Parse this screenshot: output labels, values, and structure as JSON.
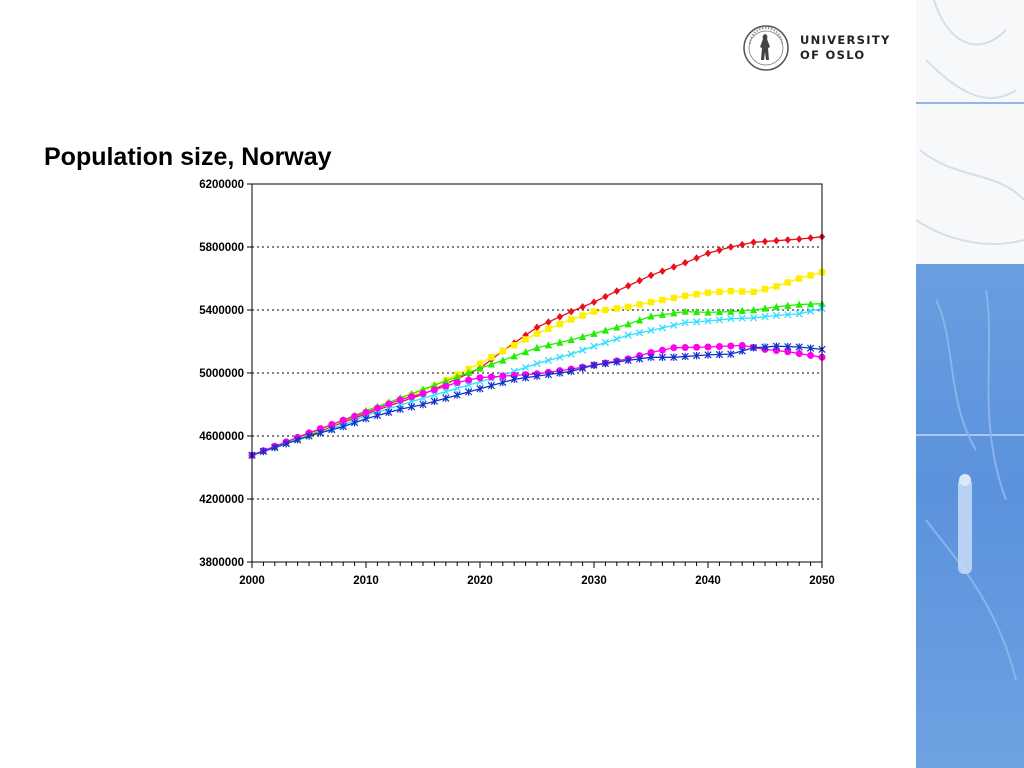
{
  "logo": {
    "line1": "UNIVERSITY",
    "line2": "OF OSLO"
  },
  "page_title": "Population size, Norway",
  "colors": {
    "side_panel": "#5b92dc",
    "divider": "#8fb7ee"
  },
  "chart_data": {
    "type": "line",
    "title": "",
    "xlabel": "",
    "ylabel": "",
    "xlim": [
      2000,
      2050
    ],
    "ylim": [
      3800000,
      6200000
    ],
    "x_ticks": [
      "2000",
      "2010",
      "2020",
      "2030",
      "2040",
      "2050"
    ],
    "y_ticks": [
      "6200000",
      "5800000",
      "5400000",
      "5000000",
      "4600000",
      "4200000",
      "3800000"
    ],
    "grid": "horizontal dotted",
    "legend": "none",
    "series": [
      {
        "color": "#e8101a",
        "marker": "diamond",
        "points": [
          [
            2000,
            4478000
          ],
          [
            2005,
            4606000
          ],
          [
            2010,
            4740000
          ],
          [
            2015,
            4865000
          ],
          [
            2020,
            5030000
          ],
          [
            2022,
            5140000
          ],
          [
            2025,
            5290000
          ],
          [
            2028,
            5390000
          ],
          [
            2030,
            5450000
          ],
          [
            2032,
            5520000
          ],
          [
            2035,
            5620000
          ],
          [
            2038,
            5700000
          ],
          [
            2040,
            5760000
          ],
          [
            2042,
            5800000
          ],
          [
            2044,
            5830000
          ],
          [
            2046,
            5840000
          ],
          [
            2048,
            5850000
          ],
          [
            2050,
            5865000
          ]
        ]
      },
      {
        "color": "#ffee00",
        "marker": "square",
        "points": [
          [
            2000,
            4478000
          ],
          [
            2005,
            4610000
          ],
          [
            2010,
            4750000
          ],
          [
            2015,
            4885000
          ],
          [
            2020,
            5060000
          ],
          [
            2022,
            5140000
          ],
          [
            2025,
            5250000
          ],
          [
            2028,
            5340000
          ],
          [
            2030,
            5390000
          ],
          [
            2033,
            5420000
          ],
          [
            2035,
            5450000
          ],
          [
            2038,
            5490000
          ],
          [
            2040,
            5510000
          ],
          [
            2042,
            5520000
          ],
          [
            2044,
            5515000
          ],
          [
            2046,
            5550000
          ],
          [
            2048,
            5600000
          ],
          [
            2050,
            5640000
          ]
        ]
      },
      {
        "color": "#22ee00",
        "marker": "triangle",
        "points": [
          [
            2000,
            4478000
          ],
          [
            2005,
            4615000
          ],
          [
            2010,
            4760000
          ],
          [
            2015,
            4895000
          ],
          [
            2020,
            5030000
          ],
          [
            2022,
            5080000
          ],
          [
            2025,
            5160000
          ],
          [
            2028,
            5210000
          ],
          [
            2030,
            5250000
          ],
          [
            2033,
            5310000
          ],
          [
            2035,
            5360000
          ],
          [
            2038,
            5390000
          ],
          [
            2040,
            5385000
          ],
          [
            2042,
            5390000
          ],
          [
            2044,
            5400000
          ],
          [
            2046,
            5420000
          ],
          [
            2048,
            5435000
          ],
          [
            2050,
            5440000
          ]
        ]
      },
      {
        "color": "#33ddff",
        "marker": "x",
        "points": [
          [
            2000,
            4478000
          ],
          [
            2005,
            4600000
          ],
          [
            2008,
            4670000
          ],
          [
            2010,
            4730000
          ],
          [
            2015,
            4840000
          ],
          [
            2020,
            4945000
          ],
          [
            2022,
            4985000
          ],
          [
            2025,
            5060000
          ],
          [
            2028,
            5120000
          ],
          [
            2030,
            5170000
          ],
          [
            2033,
            5240000
          ],
          [
            2035,
            5270000
          ],
          [
            2038,
            5320000
          ],
          [
            2040,
            5330000
          ],
          [
            2042,
            5345000
          ],
          [
            2044,
            5350000
          ],
          [
            2046,
            5365000
          ],
          [
            2048,
            5375000
          ],
          [
            2050,
            5410000
          ]
        ]
      },
      {
        "color": "#ff00ee",
        "marker": "circle",
        "points": [
          [
            2000,
            4478000
          ],
          [
            2005,
            4620000
          ],
          [
            2008,
            4700000
          ],
          [
            2010,
            4750000
          ],
          [
            2013,
            4830000
          ],
          [
            2015,
            4870000
          ],
          [
            2018,
            4940000
          ],
          [
            2020,
            4970000
          ],
          [
            2023,
            4985000
          ],
          [
            2025,
            4995000
          ],
          [
            2028,
            5025000
          ],
          [
            2030,
            5050000
          ],
          [
            2033,
            5090000
          ],
          [
            2035,
            5130000
          ],
          [
            2037,
            5160000
          ],
          [
            2040,
            5165000
          ],
          [
            2043,
            5175000
          ],
          [
            2045,
            5150000
          ],
          [
            2047,
            5135000
          ],
          [
            2050,
            5100000
          ]
        ]
      },
      {
        "color": "#1133cc",
        "marker": "star",
        "points": [
          [
            2000,
            4478000
          ],
          [
            2005,
            4600000
          ],
          [
            2008,
            4660000
          ],
          [
            2010,
            4710000
          ],
          [
            2013,
            4770000
          ],
          [
            2015,
            4800000
          ],
          [
            2018,
            4860000
          ],
          [
            2020,
            4900000
          ],
          [
            2023,
            4960000
          ],
          [
            2025,
            4980000
          ],
          [
            2028,
            5010000
          ],
          [
            2030,
            5050000
          ],
          [
            2033,
            5080000
          ],
          [
            2035,
            5100000
          ],
          [
            2037,
            5100000
          ],
          [
            2040,
            5115000
          ],
          [
            2042,
            5120000
          ],
          [
            2044,
            5160000
          ],
          [
            2046,
            5170000
          ],
          [
            2048,
            5165000
          ],
          [
            2050,
            5150000
          ]
        ]
      }
    ]
  }
}
